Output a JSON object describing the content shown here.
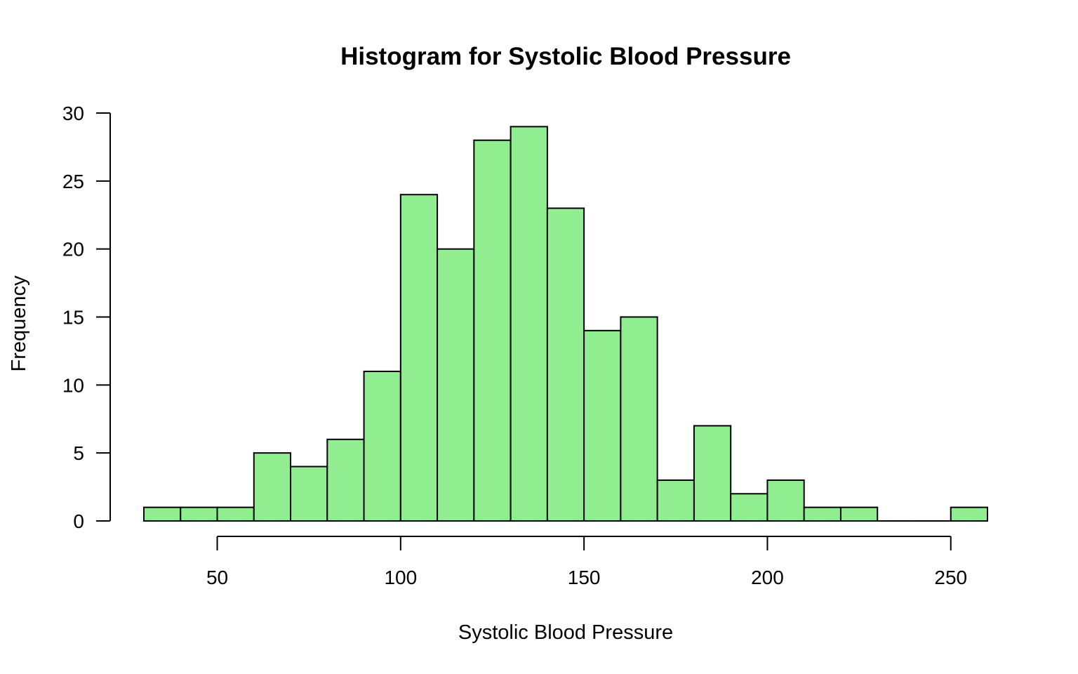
{
  "chart_data": {
    "type": "bar",
    "title": "Histogram for Systolic Blood Pressure",
    "xlabel": "Systolic Blood Pressure",
    "ylabel": "Frequency",
    "bin_edges": [
      30,
      40,
      50,
      60,
      70,
      80,
      90,
      100,
      110,
      120,
      130,
      140,
      150,
      160,
      170,
      180,
      190,
      200,
      210,
      220,
      230,
      240,
      250,
      260
    ],
    "values": [
      1,
      1,
      1,
      5,
      4,
      6,
      11,
      24,
      20,
      28,
      29,
      23,
      14,
      15,
      3,
      7,
      2,
      3,
      1,
      1,
      0,
      0,
      1
    ],
    "xticks": [
      50,
      100,
      150,
      200,
      250
    ],
    "yticks": [
      0,
      5,
      10,
      15,
      20,
      25,
      30
    ],
    "xlim": [
      30,
      260
    ],
    "ylim": [
      0,
      30
    ],
    "bar_color": "#90ee90",
    "edge_color": "#000000",
    "grid": false,
    "legend": "none"
  }
}
